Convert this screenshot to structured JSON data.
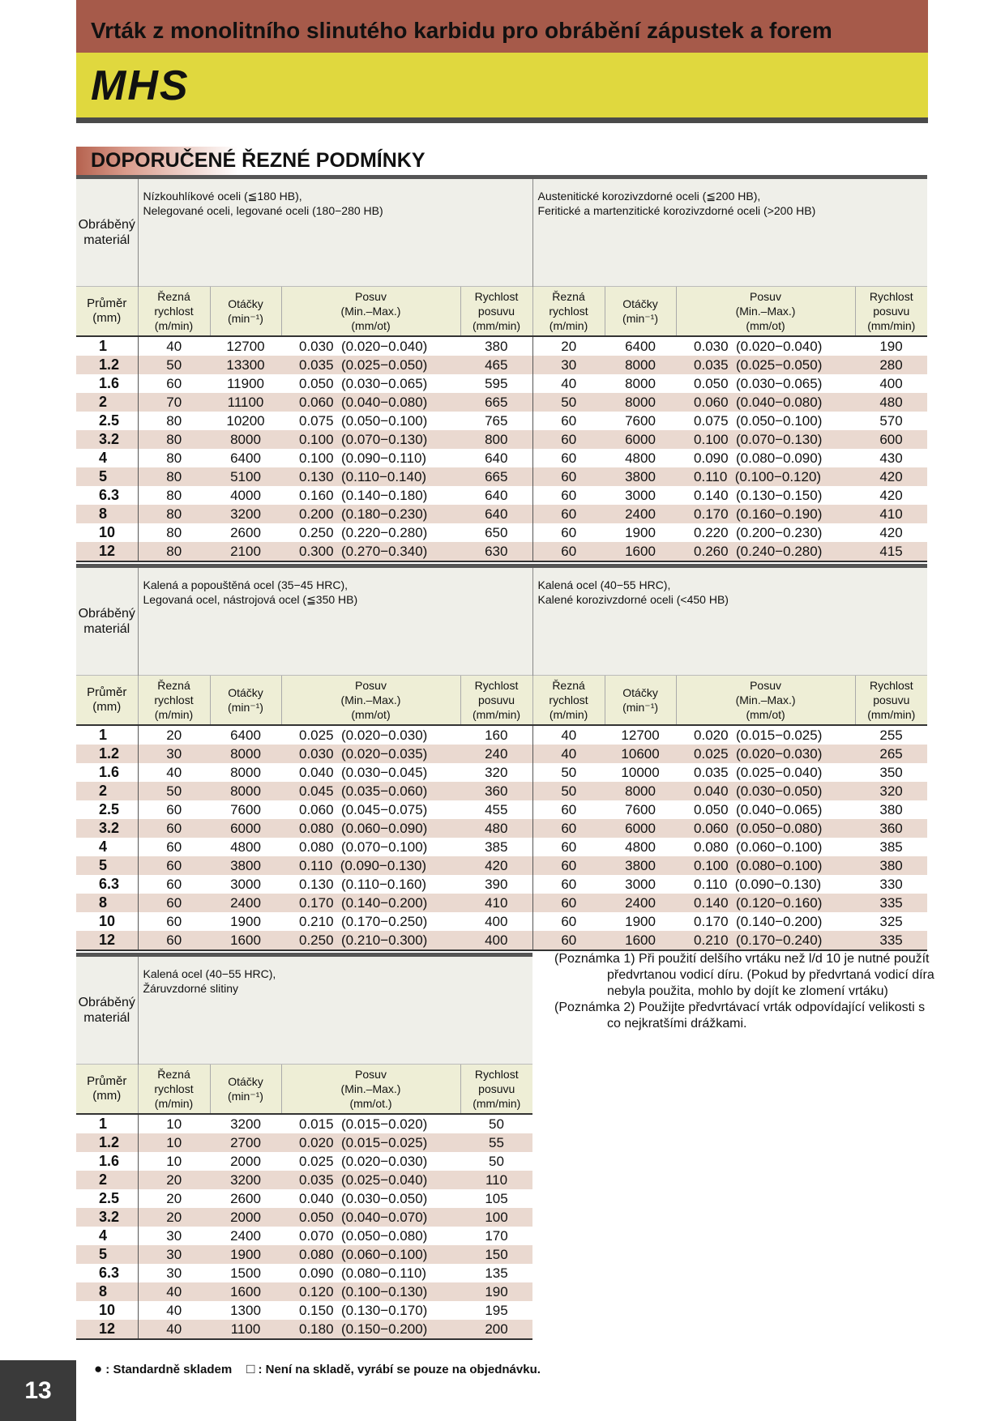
{
  "header": {
    "title": "Vrták z monolitního slinutého karbidu pro obrábění zápustek a forem",
    "product": "MHS"
  },
  "section_title": "DOPORUČENÉ ŘEZNÉ PODMÍNKY",
  "tables": [
    {
      "material_label": [
        "Obráběný",
        "materiál"
      ],
      "diameter_header": [
        "Průměr",
        "(mm)"
      ],
      "diameters": [
        1,
        1.2,
        1.6,
        2,
        2.5,
        3.2,
        4,
        5,
        6.3,
        8,
        10,
        12
      ],
      "groups": [
        {
          "material": [
            "Nízkouhlíkové oceli (≦180 HB),",
            "Nelegované oceli, legované oceli (180−280 HB)"
          ],
          "headers": [
            [
              "Řezná",
              "rychlost",
              "(m/min)"
            ],
            [
              "Otáčky",
              "(min⁻¹)"
            ],
            [
              "Posuv",
              "(Min.–Max.)",
              "(mm/ot)"
            ],
            [
              "Rychlost",
              "posuvu",
              "(mm/min)"
            ]
          ],
          "rows": [
            [
              40,
              12700,
              "0.030",
              "(0.020−0.040)",
              380
            ],
            [
              50,
              13300,
              "0.035",
              "(0.025−0.050)",
              465
            ],
            [
              60,
              11900,
              "0.050",
              "(0.030−0.065)",
              595
            ],
            [
              70,
              11100,
              "0.060",
              "(0.040−0.080)",
              665
            ],
            [
              80,
              10200,
              "0.075",
              "(0.050−0.100)",
              765
            ],
            [
              80,
              8000,
              "0.100",
              "(0.070−0.130)",
              800
            ],
            [
              80,
              6400,
              "0.100",
              "(0.090−0.110)",
              640
            ],
            [
              80,
              5100,
              "0.130",
              "(0.110−0.140)",
              665
            ],
            [
              80,
              4000,
              "0.160",
              "(0.140−0.180)",
              640
            ],
            [
              80,
              3200,
              "0.200",
              "(0.180−0.230)",
              640
            ],
            [
              80,
              2600,
              "0.250",
              "(0.220−0.280)",
              650
            ],
            [
              80,
              2100,
              "0.300",
              "(0.270−0.340)",
              630
            ]
          ]
        },
        {
          "material": [
            "Austenitické korozivzdorné oceli (≦200 HB),",
            "Feritické a martenzitické korozivzdorné oceli (>200 HB)"
          ],
          "headers": [
            [
              "Řezná",
              "rychlost",
              "(m/min)"
            ],
            [
              "Otáčky",
              "(min⁻¹)"
            ],
            [
              "Posuv",
              "(Min.–Max.)",
              "(mm/ot)"
            ],
            [
              "Rychlost",
              "posuvu",
              "(mm/min)"
            ]
          ],
          "rows": [
            [
              20,
              6400,
              "0.030",
              "(0.020−0.040)",
              190
            ],
            [
              30,
              8000,
              "0.035",
              "(0.025−0.050)",
              280
            ],
            [
              40,
              8000,
              "0.050",
              "(0.030−0.065)",
              400
            ],
            [
              50,
              8000,
              "0.060",
              "(0.040−0.080)",
              480
            ],
            [
              60,
              7600,
              "0.075",
              "(0.050−0.100)",
              570
            ],
            [
              60,
              6000,
              "0.100",
              "(0.070−0.130)",
              600
            ],
            [
              60,
              4800,
              "0.090",
              "(0.080−0.090)",
              430
            ],
            [
              60,
              3800,
              "0.110",
              "(0.100−0.120)",
              420
            ],
            [
              60,
              3000,
              "0.140",
              "(0.130−0.150)",
              420
            ],
            [
              60,
              2400,
              "0.170",
              "(0.160−0.190)",
              410
            ],
            [
              60,
              1900,
              "0.220",
              "(0.200−0.230)",
              420
            ],
            [
              60,
              1600,
              "0.260",
              "(0.240−0.280)",
              415
            ]
          ]
        }
      ]
    },
    {
      "material_label": [
        "Obráběný",
        "materiál"
      ],
      "diameter_header": [
        "Průměr",
        "(mm)"
      ],
      "diameters": [
        1,
        1.2,
        1.6,
        2,
        2.5,
        3.2,
        4,
        5,
        6.3,
        8,
        10,
        12
      ],
      "groups": [
        {
          "material": [
            "Kalená a popouštěná ocel (35−45 HRC),",
            "Legovaná ocel, nástrojová ocel (≦350 HB)"
          ],
          "headers": [
            [
              "Řezná",
              "rychlost",
              "(m/min)"
            ],
            [
              "Otáčky",
              "(min⁻¹)"
            ],
            [
              "Posuv",
              "(Min.–Max.)",
              "(mm/ot)"
            ],
            [
              "Rychlost",
              "posuvu",
              "(mm/min)"
            ]
          ],
          "rows": [
            [
              20,
              6400,
              "0.025",
              "(0.020−0.030)",
              160
            ],
            [
              30,
              8000,
              "0.030",
              "(0.020−0.035)",
              240
            ],
            [
              40,
              8000,
              "0.040",
              "(0.030−0.045)",
              320
            ],
            [
              50,
              8000,
              "0.045",
              "(0.035−0.060)",
              360
            ],
            [
              60,
              7600,
              "0.060",
              "(0.045−0.075)",
              455
            ],
            [
              60,
              6000,
              "0.080",
              "(0.060−0.090)",
              480
            ],
            [
              60,
              4800,
              "0.080",
              "(0.070−0.100)",
              385
            ],
            [
              60,
              3800,
              "0.110",
              "(0.090−0.130)",
              420
            ],
            [
              60,
              3000,
              "0.130",
              "(0.110−0.160)",
              390
            ],
            [
              60,
              2400,
              "0.170",
              "(0.140−0.200)",
              410
            ],
            [
              60,
              1900,
              "0.210",
              "(0.170−0.250)",
              400
            ],
            [
              60,
              1600,
              "0.250",
              "(0.210−0.300)",
              400
            ]
          ]
        },
        {
          "material": [
            "Kalená ocel (40−55 HRC),",
            "Kalené korozivzdorné oceli (<450 HB)"
          ],
          "headers": [
            [
              "Řezná",
              "rychlost",
              "(m/min)"
            ],
            [
              "Otáčky",
              "(min⁻¹)"
            ],
            [
              "Posuv",
              "(Min.–Max.)",
              "(mm/ot)"
            ],
            [
              "Rychlost",
              "posuvu",
              "(mm/min)"
            ]
          ],
          "rows": [
            [
              40,
              12700,
              "0.020",
              "(0.015−0.025)",
              255
            ],
            [
              40,
              10600,
              "0.025",
              "(0.020−0.030)",
              265
            ],
            [
              50,
              10000,
              "0.035",
              "(0.025−0.040)",
              350
            ],
            [
              50,
              8000,
              "0.040",
              "(0.030−0.050)",
              320
            ],
            [
              60,
              7600,
              "0.050",
              "(0.040−0.065)",
              380
            ],
            [
              60,
              6000,
              "0.060",
              "(0.050−0.080)",
              360
            ],
            [
              60,
              4800,
              "0.080",
              "(0.060−0.100)",
              385
            ],
            [
              60,
              3800,
              "0.100",
              "(0.080−0.100)",
              380
            ],
            [
              60,
              3000,
              "0.110",
              "(0.090−0.130)",
              330
            ],
            [
              60,
              2400,
              "0.140",
              "(0.120−0.160)",
              335
            ],
            [
              60,
              1900,
              "0.170",
              "(0.140−0.200)",
              325
            ],
            [
              60,
              1600,
              "0.210",
              "(0.170−0.240)",
              335
            ]
          ]
        }
      ]
    },
    {
      "material_label": [
        "Obráběný",
        "materiál"
      ],
      "diameter_header": [
        "Průměr",
        "(mm)"
      ],
      "diameters": [
        1,
        1.2,
        1.6,
        2,
        2.5,
        3.2,
        4,
        5,
        6.3,
        8,
        10,
        12
      ],
      "groups": [
        {
          "material": [
            "Kalená ocel (40−55 HRC),",
            "Žáruvzdorné slitiny"
          ],
          "headers": [
            [
              "Řezná",
              "rychlost",
              "(m/min)"
            ],
            [
              "Otáčky",
              "(min⁻¹)"
            ],
            [
              "Posuv",
              "(Min.–Max.)",
              "(mm/ot.)"
            ],
            [
              "Rychlost",
              "posuvu",
              "(mm/min)"
            ]
          ],
          "rows": [
            [
              10,
              3200,
              "0.015",
              "(0.015−0.020)",
              50
            ],
            [
              10,
              2700,
              "0.020",
              "(0.015−0.025)",
              55
            ],
            [
              10,
              2000,
              "0.025",
              "(0.020−0.030)",
              50
            ],
            [
              20,
              3200,
              "0.035",
              "(0.025−0.040)",
              110
            ],
            [
              20,
              2600,
              "0.040",
              "(0.030−0.050)",
              105
            ],
            [
              20,
              2000,
              "0.050",
              "(0.040−0.070)",
              100
            ],
            [
              30,
              2400,
              "0.070",
              "(0.050−0.080)",
              170
            ],
            [
              30,
              1900,
              "0.080",
              "(0.060−0.100)",
              150
            ],
            [
              30,
              1500,
              "0.090",
              "(0.080−0.110)",
              135
            ],
            [
              40,
              1600,
              "0.120",
              "(0.100−0.130)",
              190
            ],
            [
              40,
              1300,
              "0.150",
              "(0.130−0.170)",
              195
            ],
            [
              40,
              1100,
              "0.180",
              "(0.150−0.200)",
              200
            ]
          ]
        }
      ]
    }
  ],
  "notes": [
    {
      "label": "(Poznámka 1)",
      "text": "Při použití delšího vrtáku než l/d 10 je nutné použít předvrtanou vodicí díru. (Pokud by předvrtaná vodicí díra nebyla použita, mohlo by dojít ke zlomení vrtáku)"
    },
    {
      "label": "(Poznámka 2)",
      "text": "Použijte předvrtávací vrták odpovídající velikosti s co nejkratšími drážkami."
    }
  ],
  "legend": [
    {
      "symbol": "●",
      "text": ": Standardně skladem"
    },
    {
      "symbol": "□",
      "text": ": Není na skladě, vyrábí se pouze na objednávku."
    }
  ],
  "page_number": "13"
}
